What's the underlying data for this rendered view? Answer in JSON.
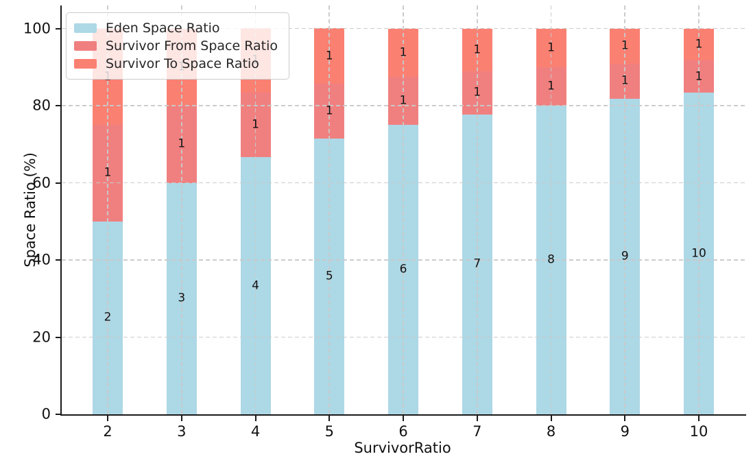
{
  "chart_data": {
    "type": "bar",
    "stacked": true,
    "title": "",
    "xlabel": "SurvivorRatio",
    "ylabel": "Space Ratio (%)",
    "categories": [
      "2",
      "3",
      "4",
      "5",
      "6",
      "7",
      "8",
      "9",
      "10"
    ],
    "yticks": [
      0,
      20,
      40,
      60,
      80,
      100
    ],
    "ylim": [
      0,
      106
    ],
    "grid": true,
    "grid_style": "dashed",
    "legend_position": "upper-left",
    "series": [
      {
        "name": "Eden Space Ratio",
        "color": "#ADD8E6",
        "values": [
          50,
          60,
          66.67,
          71.43,
          75,
          77.78,
          80,
          81.82,
          83.33
        ],
        "bar_labels": [
          "2",
          "3",
          "4",
          "5",
          "6",
          "7",
          "8",
          "9",
          "10"
        ]
      },
      {
        "name": "Survivor From Space Ratio",
        "color": "#F08080",
        "values": [
          25,
          20,
          16.67,
          14.29,
          12.5,
          11.11,
          10,
          9.09,
          8.33
        ],
        "bar_labels": [
          "1",
          "1",
          "1",
          "1",
          "1",
          "1",
          "1",
          "1",
          "1"
        ]
      },
      {
        "name": "Survivor To Space Ratio",
        "color": "#FA8072",
        "values": [
          25,
          20,
          16.67,
          14.29,
          12.5,
          11.11,
          10,
          9.09,
          8.33
        ],
        "bar_labels": [
          "1",
          "1",
          "1",
          "1",
          "1",
          "1",
          "1",
          "1",
          "1"
        ]
      }
    ],
    "colors": {
      "grid": "#c9c9c9",
      "axis": "#1a1a1a",
      "label_text": "#111111"
    }
  }
}
